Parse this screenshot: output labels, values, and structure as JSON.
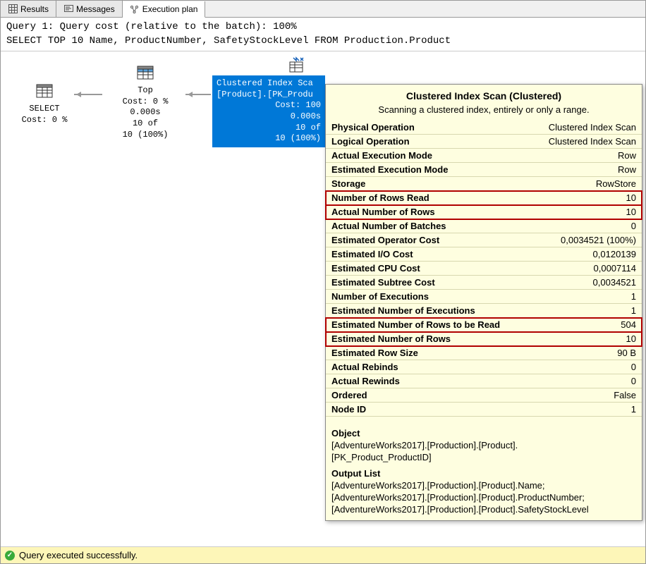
{
  "tabs": {
    "results": "Results",
    "messages": "Messages",
    "execution_plan": "Execution plan"
  },
  "query_header": {
    "line1": "Query 1: Query cost (relative to the batch): 100%",
    "line2": "SELECT TOP 10 Name, ProductNumber, SafetyStockLevel FROM Production.Product"
  },
  "nodes": {
    "select": {
      "title": "SELECT",
      "cost": "Cost: 0 %"
    },
    "top": {
      "title": "Top",
      "cost": "Cost: 0 %",
      "time": "0.000s",
      "rows1": "10 of",
      "rows2": "10 (100%)"
    },
    "scan": {
      "line1": "Clustered Index Sca",
      "line2": "[Product].[PK_Produ",
      "cost": "Cost: 100",
      "time": "0.000s",
      "rows1": "10 of",
      "rows2": "10 (100%)"
    }
  },
  "tooltip": {
    "title": "Clustered Index Scan (Clustered)",
    "desc": "Scanning a clustered index, entirely or only a range.",
    "rows": [
      {
        "label": "Physical Operation",
        "value": "Clustered Index Scan",
        "hl": false
      },
      {
        "label": "Logical Operation",
        "value": "Clustered Index Scan",
        "hl": false
      },
      {
        "label": "Actual Execution Mode",
        "value": "Row",
        "hl": false
      },
      {
        "label": "Estimated Execution Mode",
        "value": "Row",
        "hl": false
      },
      {
        "label": "Storage",
        "value": "RowStore",
        "hl": false
      },
      {
        "label": "Number of Rows Read",
        "value": "10",
        "hl": true
      },
      {
        "label": "Actual Number of Rows",
        "value": "10",
        "hl": true
      },
      {
        "label": "Actual Number of Batches",
        "value": "0",
        "hl": false
      },
      {
        "label": "Estimated Operator Cost",
        "value": "0,0034521 (100%)",
        "hl": false
      },
      {
        "label": "Estimated I/O Cost",
        "value": "0,0120139",
        "hl": false
      },
      {
        "label": "Estimated CPU Cost",
        "value": "0,0007114",
        "hl": false
      },
      {
        "label": "Estimated Subtree Cost",
        "value": "0,0034521",
        "hl": false
      },
      {
        "label": "Number of Executions",
        "value": "1",
        "hl": false
      },
      {
        "label": "Estimated Number of Executions",
        "value": "1",
        "hl": false
      },
      {
        "label": "Estimated Number of Rows to be Read",
        "value": "504",
        "hl": true
      },
      {
        "label": "Estimated Number of Rows",
        "value": "10",
        "hl": true
      },
      {
        "label": "Estimated Row Size",
        "value": "90 B",
        "hl": false
      },
      {
        "label": "Actual Rebinds",
        "value": "0",
        "hl": false
      },
      {
        "label": "Actual Rewinds",
        "value": "0",
        "hl": false
      },
      {
        "label": "Ordered",
        "value": "False",
        "hl": false
      },
      {
        "label": "Node ID",
        "value": "1",
        "hl": false
      }
    ],
    "object_label": "Object",
    "object_lines": [
      "[AdventureWorks2017].[Production].[Product].",
      "[PK_Product_ProductID]"
    ],
    "output_label": "Output List",
    "output_lines": [
      "[AdventureWorks2017].[Production].[Product].Name;",
      "[AdventureWorks2017].[Production].[Product].ProductNumber;",
      "[AdventureWorks2017].[Production].[Product].SafetyStockLevel"
    ]
  },
  "status": {
    "text": "Query executed successfully."
  },
  "colors": {
    "tooltip_bg": "#fefee0",
    "highlight_border": "#b00000",
    "selected_bg": "#0078d7",
    "status_bg": "#fdf6b8"
  }
}
